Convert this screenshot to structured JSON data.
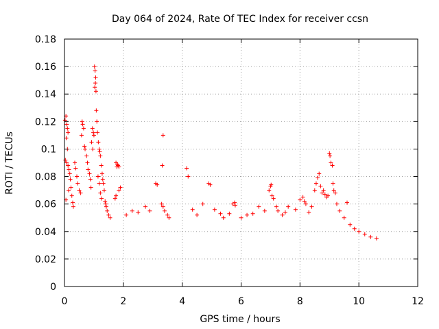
{
  "chart_data": {
    "type": "scatter",
    "title": "Day 064 of 2024, Rate Of TEC Index for receiver ccsn",
    "xlabel": "GPS time / hours",
    "ylabel": "ROTI / TECUs",
    "xlim": [
      0,
      12
    ],
    "ylim": [
      0,
      0.18
    ],
    "xticks": [
      0,
      2,
      4,
      6,
      8,
      10,
      12
    ],
    "xtick_labels": [
      "0",
      "2",
      "4",
      "6",
      "8",
      "10",
      "12"
    ],
    "yticks": [
      0,
      0.02,
      0.04,
      0.06,
      0.08,
      0.1,
      0.12,
      0.14,
      0.16,
      0.18
    ],
    "ytick_labels": [
      "0",
      "0.02",
      "0.04",
      "0.06",
      "0.08",
      "0.1",
      "0.12",
      "0.14",
      "0.16",
      "0.18"
    ],
    "grid": true,
    "marker": "+",
    "color": "#ff0000",
    "series": [
      {
        "name": "ROTI",
        "points": [
          [
            0.02,
            0.121
          ],
          [
            0.05,
            0.124
          ],
          [
            0.08,
            0.118
          ],
          [
            0.1,
            0.115
          ],
          [
            0.12,
            0.112
          ],
          [
            0.06,
            0.108
          ],
          [
            0.1,
            0.1
          ],
          [
            0.03,
            0.092
          ],
          [
            0.07,
            0.09
          ],
          [
            0.12,
            0.088
          ],
          [
            0.15,
            0.085
          ],
          [
            0.18,
            0.082
          ],
          [
            0.2,
            0.078
          ],
          [
            0.22,
            0.072
          ],
          [
            0.25,
            0.066
          ],
          [
            0.28,
            0.061
          ],
          [
            0.3,
            0.058
          ],
          [
            0.05,
            0.063
          ],
          [
            0.14,
            0.07
          ],
          [
            0.35,
            0.09
          ],
          [
            0.38,
            0.086
          ],
          [
            0.42,
            0.08
          ],
          [
            0.45,
            0.075
          ],
          [
            0.5,
            0.07
          ],
          [
            0.55,
            0.068
          ],
          [
            0.6,
            0.12
          ],
          [
            0.62,
            0.118
          ],
          [
            0.65,
            0.115
          ],
          [
            0.58,
            0.11
          ],
          [
            0.68,
            0.102
          ],
          [
            0.7,
            0.1
          ],
          [
            0.75,
            0.095
          ],
          [
            0.78,
            0.09
          ],
          [
            0.8,
            0.085
          ],
          [
            0.85,
            0.082
          ],
          [
            0.88,
            0.078
          ],
          [
            0.9,
            0.072
          ],
          [
            0.95,
            0.115
          ],
          [
            0.98,
            0.112
          ],
          [
            1.0,
            0.11
          ],
          [
            0.92,
            0.105
          ],
          [
            0.96,
            0.1
          ],
          [
            1.02,
            0.16
          ],
          [
            1.04,
            0.157
          ],
          [
            1.06,
            0.152
          ],
          [
            1.05,
            0.148
          ],
          [
            1.03,
            0.145
          ],
          [
            1.07,
            0.142
          ],
          [
            1.08,
            0.128
          ],
          [
            1.1,
            0.12
          ],
          [
            1.12,
            0.112
          ],
          [
            1.15,
            0.105
          ],
          [
            1.18,
            0.1
          ],
          [
            1.2,
            0.098
          ],
          [
            1.22,
            0.095
          ],
          [
            1.25,
            0.088
          ],
          [
            1.28,
            0.082
          ],
          [
            1.3,
            0.078
          ],
          [
            1.32,
            0.075
          ],
          [
            1.35,
            0.07
          ],
          [
            1.14,
            0.08
          ],
          [
            1.18,
            0.075
          ],
          [
            1.22,
            0.068
          ],
          [
            1.26,
            0.064
          ],
          [
            1.38,
            0.062
          ],
          [
            1.4,
            0.06
          ],
          [
            1.42,
            0.058
          ],
          [
            1.45,
            0.055
          ],
          [
            1.5,
            0.052
          ],
          [
            1.55,
            0.05
          ],
          [
            1.75,
            0.09
          ],
          [
            1.8,
            0.089
          ],
          [
            1.82,
            0.088
          ],
          [
            1.78,
            0.087
          ],
          [
            1.85,
            0.087
          ],
          [
            1.72,
            0.064
          ],
          [
            1.75,
            0.066
          ],
          [
            1.85,
            0.07
          ],
          [
            1.9,
            0.072
          ],
          [
            2.1,
            0.052
          ],
          [
            2.3,
            0.055
          ],
          [
            2.5,
            0.054
          ],
          [
            2.75,
            0.058
          ],
          [
            2.9,
            0.055
          ],
          [
            3.1,
            0.075
          ],
          [
            3.15,
            0.074
          ],
          [
            3.3,
            0.06
          ],
          [
            3.35,
            0.058
          ],
          [
            3.4,
            0.055
          ],
          [
            3.35,
            0.11
          ],
          [
            3.32,
            0.088
          ],
          [
            3.5,
            0.052
          ],
          [
            3.55,
            0.05
          ],
          [
            4.15,
            0.086
          ],
          [
            4.2,
            0.08
          ],
          [
            4.35,
            0.056
          ],
          [
            4.5,
            0.052
          ],
          [
            4.7,
            0.06
          ],
          [
            4.9,
            0.075
          ],
          [
            4.95,
            0.074
          ],
          [
            5.1,
            0.056
          ],
          [
            5.3,
            0.053
          ],
          [
            5.4,
            0.05
          ],
          [
            5.6,
            0.053
          ],
          [
            5.72,
            0.06
          ],
          [
            5.78,
            0.061
          ],
          [
            5.8,
            0.059
          ],
          [
            6.0,
            0.05
          ],
          [
            6.2,
            0.052
          ],
          [
            6.4,
            0.053
          ],
          [
            6.6,
            0.058
          ],
          [
            6.8,
            0.055
          ],
          [
            6.95,
            0.07
          ],
          [
            7.0,
            0.073
          ],
          [
            7.02,
            0.074
          ],
          [
            7.05,
            0.066
          ],
          [
            7.1,
            0.064
          ],
          [
            7.2,
            0.058
          ],
          [
            7.25,
            0.055
          ],
          [
            7.4,
            0.052
          ],
          [
            7.5,
            0.054
          ],
          [
            7.6,
            0.058
          ],
          [
            7.85,
            0.056
          ],
          [
            8.0,
            0.063
          ],
          [
            8.1,
            0.065
          ],
          [
            8.15,
            0.062
          ],
          [
            8.2,
            0.06
          ],
          [
            8.3,
            0.054
          ],
          [
            8.4,
            0.058
          ],
          [
            8.5,
            0.07
          ],
          [
            8.55,
            0.075
          ],
          [
            8.6,
            0.079
          ],
          [
            8.65,
            0.082
          ],
          [
            8.7,
            0.073
          ],
          [
            8.75,
            0.068
          ],
          [
            8.8,
            0.07
          ],
          [
            8.85,
            0.067
          ],
          [
            8.9,
            0.065
          ],
          [
            8.95,
            0.066
          ],
          [
            9.0,
            0.097
          ],
          [
            9.02,
            0.095
          ],
          [
            9.05,
            0.09
          ],
          [
            9.1,
            0.088
          ],
          [
            9.12,
            0.075
          ],
          [
            9.15,
            0.07
          ],
          [
            9.2,
            0.068
          ],
          [
            9.25,
            0.06
          ],
          [
            9.35,
            0.055
          ],
          [
            9.5,
            0.05
          ],
          [
            9.6,
            0.061
          ],
          [
            9.7,
            0.045
          ],
          [
            9.85,
            0.042
          ],
          [
            10.0,
            0.04
          ],
          [
            10.2,
            0.038
          ],
          [
            10.4,
            0.036
          ],
          [
            10.6,
            0.035
          ]
        ]
      }
    ]
  }
}
